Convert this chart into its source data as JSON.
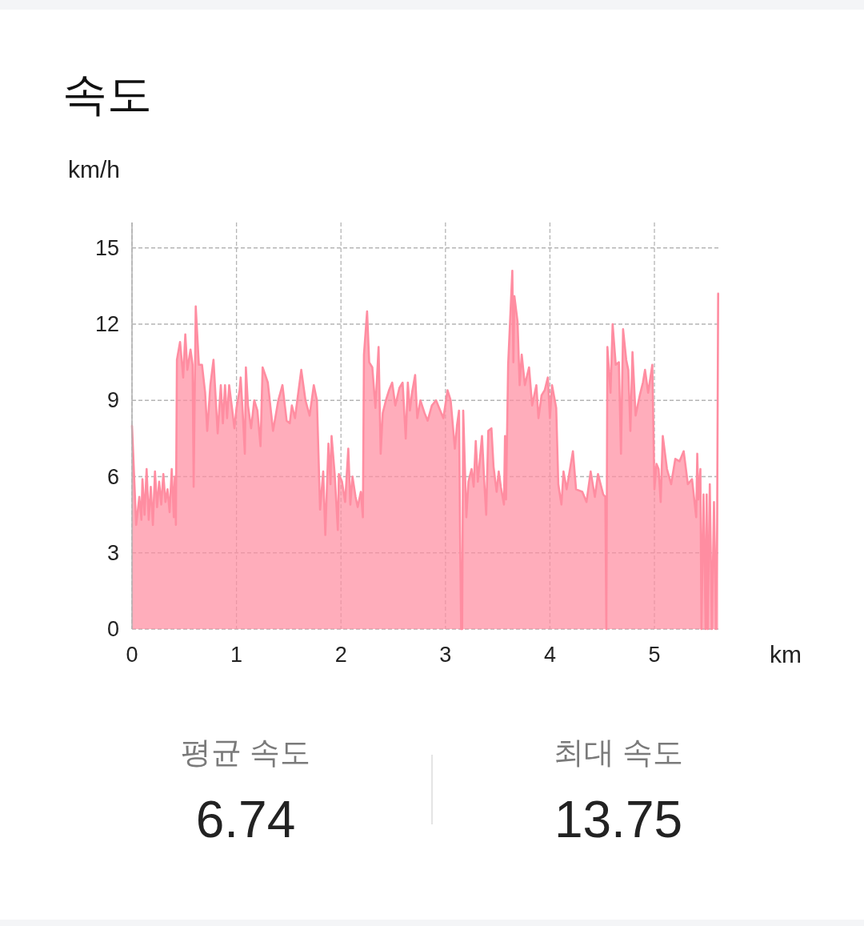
{
  "chart_data": [
    {
      "type": "area",
      "title": "속도",
      "ylabel": "km/h",
      "xlabel": "km",
      "xlim": [
        0,
        5.62
      ],
      "ylim": [
        0,
        16
      ],
      "xticks": [
        0,
        1,
        2,
        3,
        4,
        5
      ],
      "yticks": [
        0,
        3,
        6,
        9,
        12,
        15
      ],
      "grid": true,
      "x": [
        0,
        0.04,
        0.07,
        0.09,
        0.1,
        0.12,
        0.14,
        0.16,
        0.18,
        0.2,
        0.22,
        0.24,
        0.26,
        0.28,
        0.3,
        0.32,
        0.34,
        0.36,
        0.38,
        0.4,
        0.41,
        0.42,
        0.43,
        0.46,
        0.49,
        0.51,
        0.53,
        0.56,
        0.58,
        0.59,
        0.61,
        0.64,
        0.67,
        0.7,
        0.72,
        0.75,
        0.78,
        0.82,
        0.85,
        0.87,
        0.89,
        0.91,
        0.93,
        0.96,
        0.98,
        1.0,
        1.03,
        1.04,
        1.06,
        1.08,
        1.09,
        1.11,
        1.14,
        1.17,
        1.2,
        1.23,
        1.25,
        1.3,
        1.35,
        1.4,
        1.44,
        1.48,
        1.51,
        1.53,
        1.56,
        1.62,
        1.66,
        1.7,
        1.74,
        1.77,
        1.8,
        1.83,
        1.85,
        1.88,
        1.9,
        1.91,
        1.94,
        1.97,
        1.98,
        2.01,
        2.04,
        2.07,
        2.09,
        2.11,
        2.14,
        2.16,
        2.19,
        2.21,
        2.22,
        2.25,
        2.27,
        2.3,
        2.33,
        2.36,
        2.38,
        2.4,
        2.43,
        2.46,
        2.49,
        2.52,
        2.56,
        2.59,
        2.62,
        2.64,
        2.66,
        2.68,
        2.71,
        2.73,
        2.76,
        2.8,
        2.83,
        2.87,
        2.91,
        2.95,
        2.98,
        3.02,
        3.05,
        3.09,
        3.11,
        3.13,
        3.14,
        3.15,
        3.16,
        3.17,
        3.2,
        3.22,
        3.25,
        3.27,
        3.29,
        3.31,
        3.35,
        3.37,
        3.39,
        3.41,
        3.44,
        3.46,
        3.49,
        3.51,
        3.53,
        3.56,
        3.57,
        3.58,
        3.6,
        3.64,
        3.65,
        3.66,
        3.69,
        3.71,
        3.73,
        3.76,
        3.8,
        3.83,
        3.87,
        3.89,
        3.92,
        3.95,
        3.98,
        4.0,
        4.02,
        4.06,
        4.08,
        4.11,
        4.13,
        4.16,
        4.22,
        4.25,
        4.31,
        4.35,
        4.39,
        4.43,
        4.46,
        4.51,
        4.53,
        4.54,
        4.55,
        4.58,
        4.6,
        4.63,
        4.66,
        4.68,
        4.7,
        4.73,
        4.75,
        4.77,
        4.79,
        4.82,
        4.86,
        4.89,
        4.91,
        4.94,
        4.98,
        5.0,
        5.02,
        5.04,
        5.06,
        5.08,
        5.12,
        5.16,
        5.2,
        5.24,
        5.28,
        5.32,
        5.36,
        5.4,
        5.41,
        5.42,
        5.44,
        5.45,
        5.47,
        5.49,
        5.5,
        5.51,
        5.53,
        5.55,
        5.57,
        5.59,
        5.6,
        5.61
      ],
      "series": [
        {
          "color": "#ff8da1",
          "values": [
            8.0,
            4.1,
            5.2,
            4.3,
            5.9,
            4.5,
            6.3,
            4.3,
            5.6,
            4.1,
            6.2,
            4.8,
            5.8,
            4.9,
            6.1,
            5.0,
            5.5,
            4.6,
            6.3,
            4.4,
            6.0,
            4.1,
            10.6,
            11.3,
            9.9,
            11.6,
            10.2,
            11.0,
            10.4,
            5.6,
            12.7,
            10.4,
            10.4,
            9.3,
            7.8,
            9.6,
            10.6,
            7.7,
            9.6,
            8.1,
            9.6,
            8.3,
            9.6,
            8.6,
            7.9,
            8.7,
            9.4,
            9.9,
            8.5,
            6.9,
            10.3,
            8.8,
            7.9,
            9.0,
            8.6,
            7.2,
            10.3,
            9.7,
            7.8,
            9.0,
            9.6,
            8.2,
            8.1,
            8.8,
            8.3,
            10.2,
            9.0,
            8.4,
            9.6,
            9.0,
            4.7,
            6.2,
            3.7,
            7.3,
            5.7,
            7.6,
            6.1,
            3.9,
            6.1,
            5.8,
            5.0,
            7.1,
            4.9,
            6.0,
            5.2,
            4.8,
            5.4,
            4.4,
            10.8,
            12.5,
            10.5,
            10.3,
            8.7,
            11.1,
            6.9,
            8.5,
            9.0,
            9.4,
            9.7,
            8.8,
            9.5,
            9.7,
            7.5,
            9.7,
            8.6,
            9.3,
            10.0,
            8.3,
            9.0,
            8.5,
            8.2,
            8.8,
            9.0,
            8.6,
            8.3,
            9.4,
            9.0,
            7.1,
            8.0,
            8.6,
            3.8,
            0,
            0,
            8.6,
            4.4,
            5.8,
            6.3,
            5.6,
            7.4,
            5.8,
            7.6,
            5.9,
            4.5,
            7.8,
            7.9,
            6.4,
            5.4,
            6.2,
            5.6,
            4.9,
            7.6,
            5.1,
            10.4,
            14.1,
            10.5,
            13.1,
            12.1,
            9.6,
            10.8,
            9.6,
            10.3,
            8.8,
            9.6,
            8.3,
            9.2,
            9.4,
            9.9,
            8.3,
            9.6,
            8.7,
            5.7,
            4.9,
            6.2,
            5.5,
            7.0,
            5.5,
            5.4,
            5.0,
            6.2,
            5.2,
            6.1,
            5.3,
            5.2,
            0,
            11.1,
            9.3,
            12.0,
            10.4,
            10.5,
            6.9,
            11.8,
            10.6,
            10.2,
            7.8,
            10.9,
            8.4,
            9.2,
            9.7,
            10.2,
            9.3,
            10.4,
            5.5,
            6.5,
            6.3,
            5.0,
            7.6,
            6.3,
            5.7,
            6.7,
            6.6,
            7.0,
            5.7,
            5.9,
            4.4,
            6.9,
            5.1,
            6.3,
            0,
            5.3,
            0,
            5.3,
            0,
            5.7,
            0,
            5.0,
            0,
            4.0,
            13.2
          ]
        }
      ]
    },
    {
      "type": "other",
      "annotations": [
        "평균 속도",
        "6.74",
        "최대 속도",
        "13.75"
      ]
    }
  ]
}
